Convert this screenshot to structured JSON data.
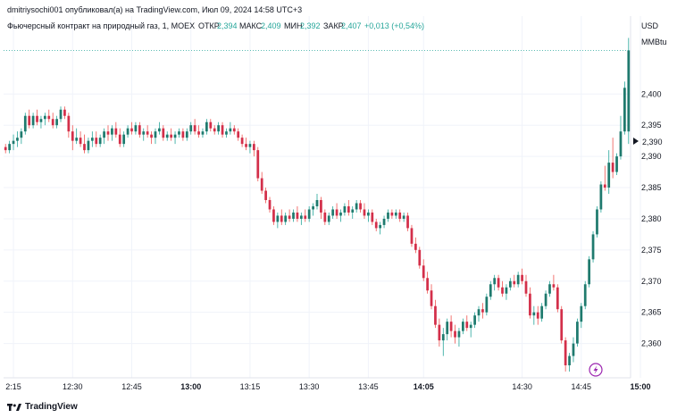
{
  "header": {
    "publisher_line": "dmitriysochi001 опубликовал(а) на TradingView.com, Июл 09, 2024 14:58 UTC+3"
  },
  "legend": {
    "symbol": "Фьючерсный контракт на природный газ, 1, MOEX",
    "open_label": "ОТКР",
    "open_value": "2,394",
    "high_label": "МАКС",
    "high_value": "2,409",
    "low_label": "МИН",
    "low_value": "2,392",
    "close_label": "ЗАКР",
    "close_value": "2,407",
    "change": "+0,013 (+0,54%)"
  },
  "price_scale": {
    "currency": "USD",
    "unit": "MMBtu",
    "last_marker": "2,390"
  },
  "footer": {
    "brand": "TradingView",
    "logo": "tv-logo-icon"
  },
  "colors": {
    "up": "#26a69a",
    "up_body": "#1f7a6e",
    "down": "#ef5350",
    "down_body": "#d32f4a",
    "grid": "#f0f3fa",
    "axis_text": "#131722",
    "lightning_badge": "#9c27b0"
  },
  "chart_data": {
    "type": "candlestick",
    "title": "Фьючерсный контракт на природный газ, 1, MOEX",
    "ylabel": "USD / MMBtu",
    "ylim": [
      2.3545,
      2.4125
    ],
    "y_ticks": [
      "2,360",
      "2,365",
      "2,370",
      "2,375",
      "2,380",
      "2,385",
      "2,390",
      "2,395",
      "2,400"
    ],
    "y_tick_values": [
      2.36,
      2.365,
      2.37,
      2.375,
      2.38,
      2.385,
      2.39,
      2.395,
      2.4
    ],
    "x_ticks": [
      "2:15",
      "12:30",
      "12:45",
      "13:00",
      "13:15",
      "13:30",
      "13:45",
      "14:05",
      "14:30",
      "14:45",
      "15:00"
    ],
    "x_tick_bold": [
      false,
      false,
      false,
      true,
      false,
      false,
      false,
      true,
      false,
      false,
      true
    ],
    "x_tick_index": [
      2,
      17,
      32,
      47,
      62,
      77,
      92,
      106,
      131,
      146,
      161
    ],
    "candles": [
      [
        2.3915,
        2.392,
        2.3905,
        2.391
      ],
      [
        2.391,
        2.3925,
        2.3905,
        2.392
      ],
      [
        2.392,
        2.3935,
        2.391,
        2.3925
      ],
      [
        2.3925,
        2.394,
        2.3915,
        2.393
      ],
      [
        2.393,
        2.3945,
        2.392,
        2.394
      ],
      [
        2.394,
        2.397,
        2.3935,
        2.3965
      ],
      [
        2.3965,
        2.3975,
        2.3945,
        2.395
      ],
      [
        2.395,
        2.397,
        2.3945,
        2.3965
      ],
      [
        2.3965,
        2.3975,
        2.395,
        2.3955
      ],
      [
        2.3955,
        2.3965,
        2.3945,
        2.396
      ],
      [
        2.396,
        2.397,
        2.395,
        2.3965
      ],
      [
        2.3965,
        2.3975,
        2.3955,
        2.396
      ],
      [
        2.396,
        2.397,
        2.3945,
        2.395
      ],
      [
        2.395,
        2.3965,
        2.3945,
        2.396
      ],
      [
        2.396,
        2.398,
        2.3955,
        2.3975
      ],
      [
        2.3975,
        2.398,
        2.396,
        2.3965
      ],
      [
        2.3965,
        2.397,
        2.393,
        2.394
      ],
      [
        2.394,
        2.395,
        2.391,
        2.3925
      ],
      [
        2.3925,
        2.3945,
        2.392,
        2.393
      ],
      [
        2.393,
        2.394,
        2.3915,
        2.392
      ],
      [
        2.392,
        2.3935,
        2.3905,
        2.391
      ],
      [
        2.391,
        2.393,
        2.3905,
        2.3925
      ],
      [
        2.3925,
        2.394,
        2.3915,
        2.393
      ],
      [
        2.393,
        2.394,
        2.3915,
        2.392
      ],
      [
        2.392,
        2.3935,
        2.3915,
        2.393
      ],
      [
        2.393,
        2.3945,
        2.392,
        2.394
      ],
      [
        2.394,
        2.395,
        2.3925,
        2.3935
      ],
      [
        2.3935,
        2.395,
        2.3925,
        2.3945
      ],
      [
        2.3945,
        2.3955,
        2.393,
        2.3935
      ],
      [
        2.3935,
        2.3945,
        2.3915,
        2.392
      ],
      [
        2.392,
        2.394,
        2.3915,
        2.3935
      ],
      [
        2.3935,
        2.395,
        2.393,
        2.3945
      ],
      [
        2.3945,
        2.3955,
        2.3935,
        2.394
      ],
      [
        2.394,
        2.3955,
        2.3935,
        2.395
      ],
      [
        2.395,
        2.3955,
        2.393,
        2.3935
      ],
      [
        2.3935,
        2.3945,
        2.3925,
        2.394
      ],
      [
        2.394,
        2.395,
        2.393,
        2.3935
      ],
      [
        2.3935,
        2.394,
        2.392,
        2.393
      ],
      [
        2.393,
        2.3945,
        2.392,
        2.394
      ],
      [
        2.394,
        2.3955,
        2.3935,
        2.3945
      ],
      [
        2.3945,
        2.395,
        2.3925,
        2.393
      ],
      [
        2.393,
        2.394,
        2.3925,
        2.3935
      ],
      [
        2.3935,
        2.3945,
        2.3925,
        2.393
      ],
      [
        2.393,
        2.394,
        2.392,
        2.3935
      ],
      [
        2.3935,
        2.3945,
        2.393,
        2.394
      ],
      [
        2.394,
        2.3945,
        2.3925,
        2.393
      ],
      [
        2.393,
        2.3945,
        2.3925,
        2.394
      ],
      [
        2.394,
        2.3955,
        2.3935,
        2.395
      ],
      [
        2.395,
        2.396,
        2.3935,
        2.394
      ],
      [
        2.394,
        2.395,
        2.393,
        2.3935
      ],
      [
        2.3935,
        2.3945,
        2.393,
        2.394
      ],
      [
        2.394,
        2.396,
        2.3935,
        2.3955
      ],
      [
        2.3955,
        2.396,
        2.394,
        2.3945
      ],
      [
        2.3945,
        2.395,
        2.3935,
        2.394
      ],
      [
        2.394,
        2.3955,
        2.3935,
        2.395
      ],
      [
        2.395,
        2.3955,
        2.393,
        2.3935
      ],
      [
        2.3935,
        2.3945,
        2.393,
        2.394
      ],
      [
        2.394,
        2.3955,
        2.3935,
        2.3945
      ],
      [
        2.3945,
        2.395,
        2.3935,
        2.394
      ],
      [
        2.394,
        2.3945,
        2.3925,
        2.393
      ],
      [
        2.393,
        2.3935,
        2.3915,
        2.392
      ],
      [
        2.392,
        2.393,
        2.391,
        2.3915
      ],
      [
        2.3915,
        2.3925,
        2.3905,
        2.392
      ],
      [
        2.392,
        2.3925,
        2.39,
        2.391
      ],
      [
        2.391,
        2.3915,
        2.386,
        2.3865
      ],
      [
        2.3865,
        2.3875,
        2.384,
        2.3845
      ],
      [
        2.3845,
        2.385,
        2.3825,
        2.383
      ],
      [
        2.383,
        2.3835,
        2.381,
        2.3815
      ],
      [
        2.3815,
        2.382,
        2.379,
        2.3795
      ],
      [
        2.3795,
        2.381,
        2.3785,
        2.3805
      ],
      [
        2.3805,
        2.3815,
        2.379,
        2.3795
      ],
      [
        2.3795,
        2.381,
        2.379,
        2.3805
      ],
      [
        2.3805,
        2.3815,
        2.3795,
        2.38
      ],
      [
        2.38,
        2.3815,
        2.3795,
        2.381
      ],
      [
        2.381,
        2.382,
        2.3795,
        2.38
      ],
      [
        2.38,
        2.381,
        2.379,
        2.3805
      ],
      [
        2.3805,
        2.3815,
        2.3795,
        2.38
      ],
      [
        2.38,
        2.382,
        2.3795,
        2.3815
      ],
      [
        2.3815,
        2.3825,
        2.3805,
        2.382
      ],
      [
        2.382,
        2.384,
        2.3815,
        2.383
      ],
      [
        2.383,
        2.3835,
        2.38,
        2.381
      ],
      [
        2.381,
        2.3815,
        2.379,
        2.3795
      ],
      [
        2.3795,
        2.381,
        2.379,
        2.3805
      ],
      [
        2.3805,
        2.382,
        2.38,
        2.3815
      ],
      [
        2.3815,
        2.3825,
        2.38,
        2.3805
      ],
      [
        2.3805,
        2.3815,
        2.3795,
        2.381
      ],
      [
        2.381,
        2.3825,
        2.3805,
        2.382
      ],
      [
        2.382,
        2.383,
        2.3805,
        2.381
      ],
      [
        2.381,
        2.382,
        2.38,
        2.3815
      ],
      [
        2.3815,
        2.383,
        2.381,
        2.3825
      ],
      [
        2.3825,
        2.383,
        2.381,
        2.3815
      ],
      [
        2.3815,
        2.3825,
        2.38,
        2.3805
      ],
      [
        2.3805,
        2.3815,
        2.3795,
        2.381
      ],
      [
        2.381,
        2.3815,
        2.379,
        2.3795
      ],
      [
        2.3795,
        2.38,
        2.378,
        2.3785
      ],
      [
        2.3785,
        2.3795,
        2.3775,
        2.379
      ],
      [
        2.379,
        2.3805,
        2.3785,
        2.38
      ],
      [
        2.38,
        2.3815,
        2.3795,
        2.381
      ],
      [
        2.381,
        2.3815,
        2.38,
        2.3805
      ],
      [
        2.3805,
        2.3815,
        2.38,
        2.381
      ],
      [
        2.381,
        2.3815,
        2.3795,
        2.38
      ],
      [
        2.38,
        2.381,
        2.3795,
        2.3805
      ],
      [
        2.3805,
        2.381,
        2.378,
        2.3785
      ],
      [
        2.3785,
        2.379,
        2.3755,
        2.376
      ],
      [
        2.376,
        2.377,
        2.3745,
        2.375
      ],
      [
        2.375,
        2.3755,
        2.372,
        2.3725
      ],
      [
        2.3725,
        2.3735,
        2.37,
        2.3705
      ],
      [
        2.3705,
        2.3715,
        2.368,
        2.3685
      ],
      [
        2.3685,
        2.3695,
        2.3655,
        2.366
      ],
      [
        2.366,
        2.367,
        2.3625,
        2.363
      ],
      [
        2.363,
        2.364,
        2.3595,
        2.3605
      ],
      [
        2.3605,
        2.3625,
        2.358,
        2.3615
      ],
      [
        2.3615,
        2.364,
        2.3605,
        2.3635
      ],
      [
        2.3635,
        2.3645,
        2.361,
        2.362
      ],
      [
        2.362,
        2.363,
        2.36,
        2.361
      ],
      [
        2.361,
        2.3625,
        2.3595,
        2.362
      ],
      [
        2.362,
        2.364,
        2.3615,
        2.3635
      ],
      [
        2.3635,
        2.3645,
        2.362,
        2.3625
      ],
      [
        2.3625,
        2.3635,
        2.361,
        2.363
      ],
      [
        2.363,
        2.365,
        2.3625,
        2.3645
      ],
      [
        2.3645,
        2.366,
        2.3635,
        2.3655
      ],
      [
        2.3655,
        2.3665,
        2.364,
        2.365
      ],
      [
        2.365,
        2.368,
        2.3645,
        2.3675
      ],
      [
        2.3675,
        2.37,
        2.367,
        2.3695
      ],
      [
        2.3695,
        2.371,
        2.3685,
        2.3705
      ],
      [
        2.3705,
        2.371,
        2.3685,
        2.369
      ],
      [
        2.369,
        2.37,
        2.3675,
        2.368
      ],
      [
        2.368,
        2.3695,
        2.367,
        2.369
      ],
      [
        2.369,
        2.3705,
        2.3685,
        2.37
      ],
      [
        2.37,
        2.371,
        2.369,
        2.3695
      ],
      [
        2.3695,
        2.3715,
        2.369,
        2.371
      ],
      [
        2.371,
        2.372,
        2.3695,
        2.37
      ],
      [
        2.37,
        2.371,
        2.3675,
        2.368
      ],
      [
        2.368,
        2.369,
        2.364,
        2.3645
      ],
      [
        2.3645,
        2.366,
        2.363,
        2.365
      ],
      [
        2.365,
        2.366,
        2.363,
        2.364
      ],
      [
        2.364,
        2.3665,
        2.3635,
        2.366
      ],
      [
        2.366,
        2.3685,
        2.3655,
        2.368
      ],
      [
        2.368,
        2.37,
        2.3675,
        2.3695
      ],
      [
        2.3695,
        2.371,
        2.3685,
        2.369
      ],
      [
        2.369,
        2.3695,
        2.365,
        2.3655
      ],
      [
        2.3655,
        2.366,
        2.36,
        2.3605
      ],
      [
        2.3605,
        2.361,
        2.3555,
        2.3565
      ],
      [
        2.3565,
        2.3585,
        2.3555,
        2.358
      ],
      [
        2.358,
        2.361,
        2.357,
        2.36
      ],
      [
        2.36,
        2.364,
        2.3595,
        2.3635
      ],
      [
        2.3635,
        2.3665,
        2.3625,
        2.366
      ],
      [
        2.366,
        2.37,
        2.3655,
        2.3695
      ],
      [
        2.3695,
        2.374,
        2.369,
        2.3735
      ],
      [
        2.3735,
        2.378,
        2.373,
        2.3775
      ],
      [
        2.3775,
        2.382,
        2.377,
        2.3815
      ],
      [
        2.3815,
        2.386,
        2.381,
        2.3855
      ],
      [
        2.3855,
        2.3885,
        2.3845,
        2.385
      ],
      [
        2.385,
        2.391,
        2.384,
        2.389
      ],
      [
        2.389,
        2.393,
        2.3865,
        2.3875
      ],
      [
        2.3875,
        2.3905,
        2.387,
        2.39
      ],
      [
        2.39,
        2.3965,
        2.3895,
        2.394
      ],
      [
        2.394,
        2.402,
        2.3935,
        2.401
      ],
      [
        2.394,
        2.409,
        2.392,
        2.407
      ]
    ],
    "last_price": 2.407,
    "marker_price": 2.39
  }
}
